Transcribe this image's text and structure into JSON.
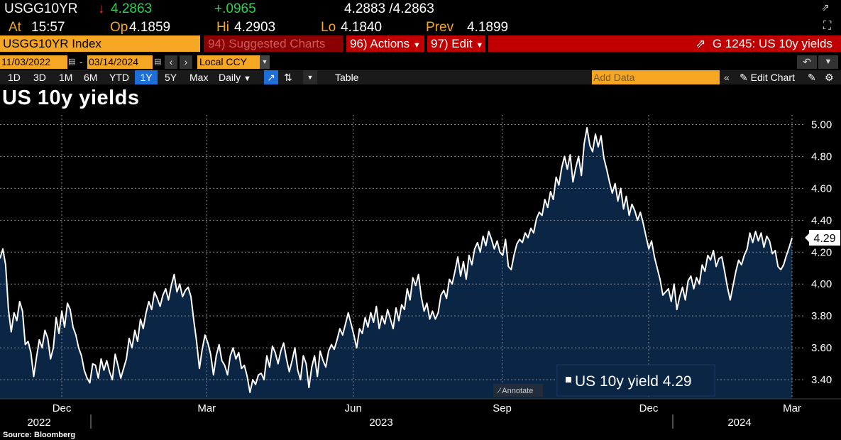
{
  "header": {
    "ticker": "USGG10YR",
    "last": "4.2863",
    "change": "+.0965",
    "bid_ask": "4.2883 /4.2863",
    "at_label": "At",
    "at_time": "15:57",
    "op_label": "Op",
    "op": "4.1859",
    "hi_label": "Hi",
    "hi": "4.2903",
    "lo_label": "Lo",
    "lo": "4.1840",
    "prev_label": "Prev",
    "prev": "4.1899"
  },
  "toolbar": {
    "security": "USGG10YR Index",
    "suggested": "94) Suggested Charts",
    "actions": "96) Actions",
    "edit": "97) Edit",
    "chart_id": "G 1245: US 10y yields",
    "start_date": "11/03/2022",
    "end_date": "03/14/2024",
    "currency": "Local CCY",
    "periods": [
      "1D",
      "3D",
      "1M",
      "6M",
      "YTD",
      "1Y",
      "5Y",
      "Max"
    ],
    "active_period": "1Y",
    "frequency": "Daily",
    "table": "Table",
    "add_data_placeholder": "Add Data",
    "edit_chart": "Edit Chart"
  },
  "colors": {
    "accent": "#f5a623",
    "up": "#2bd14f",
    "down": "#e53935",
    "toolbar_red": "#c00000",
    "fill": "#0b2545"
  },
  "chart_data": {
    "type": "area",
    "title": "US 10y yields",
    "series": [
      {
        "name": "US 10y yield",
        "last": "4.29",
        "values": [
          4.16,
          4.22,
          4.12,
          3.84,
          3.7,
          3.82,
          3.77,
          3.89,
          3.83,
          3.62,
          3.64,
          3.57,
          3.42,
          3.54,
          3.65,
          3.6,
          3.71,
          3.66,
          3.53,
          3.6,
          3.79,
          3.69,
          3.83,
          3.73,
          3.88,
          3.84,
          3.73,
          3.68,
          3.6,
          3.55,
          3.46,
          3.41,
          3.38,
          3.5,
          3.49,
          3.41,
          3.53,
          3.46,
          3.52,
          3.45,
          3.4,
          3.56,
          3.49,
          3.41,
          3.47,
          3.53,
          3.66,
          3.6,
          3.71,
          3.64,
          3.78,
          3.72,
          3.82,
          3.89,
          3.84,
          3.95,
          3.91,
          3.86,
          3.93,
          3.97,
          3.9,
          3.99,
          4.06,
          3.95,
          4.0,
          3.92,
          3.96,
          3.98,
          3.92,
          3.77,
          3.64,
          3.47,
          3.59,
          3.68,
          3.63,
          3.56,
          3.43,
          3.55,
          3.62,
          3.52,
          3.49,
          3.43,
          3.55,
          3.6,
          3.53,
          3.57,
          3.47,
          3.49,
          3.42,
          3.32,
          3.4,
          3.37,
          3.43,
          3.44,
          3.4,
          3.55,
          3.48,
          3.61,
          3.57,
          3.5,
          3.58,
          3.63,
          3.53,
          3.45,
          3.52,
          3.6,
          3.46,
          3.4,
          3.55,
          3.5,
          3.35,
          3.48,
          3.55,
          3.42,
          3.58,
          3.52,
          3.48,
          3.58,
          3.62,
          3.59,
          3.65,
          3.72,
          3.68,
          3.75,
          3.82,
          3.75,
          3.68,
          3.6,
          3.72,
          3.69,
          3.79,
          3.73,
          3.82,
          3.76,
          3.86,
          3.72,
          3.8,
          3.75,
          3.84,
          3.78,
          3.72,
          3.85,
          3.77,
          3.87,
          3.84,
          3.97,
          3.9,
          4.04,
          3.99,
          4.06,
          3.92,
          3.83,
          3.88,
          3.78,
          3.83,
          3.78,
          3.82,
          3.93,
          3.96,
          3.91,
          4.03,
          4.0,
          4.08,
          4.17,
          4.05,
          4.14,
          4.03,
          4.18,
          4.12,
          4.22,
          4.26,
          4.2,
          4.3,
          4.24,
          4.33,
          4.28,
          4.22,
          4.27,
          4.2,
          4.18,
          4.28,
          4.11,
          4.09,
          4.18,
          4.25,
          4.28,
          4.26,
          4.32,
          4.29,
          4.35,
          4.32,
          4.41,
          4.45,
          4.43,
          4.53,
          4.48,
          4.58,
          4.53,
          4.67,
          4.62,
          4.73,
          4.8,
          4.72,
          4.81,
          4.64,
          4.73,
          4.8,
          4.68,
          4.88,
          4.98,
          4.87,
          4.83,
          4.94,
          4.86,
          4.93,
          4.79,
          4.72,
          4.64,
          4.57,
          4.63,
          4.52,
          4.6,
          4.47,
          4.55,
          4.43,
          4.5,
          4.46,
          4.4,
          4.45,
          4.38,
          4.3,
          4.22,
          4.27,
          4.17,
          4.1,
          4.03,
          3.93,
          3.95,
          3.97,
          3.89,
          4.0,
          3.84,
          3.92,
          3.98,
          3.9,
          4.02,
          4.05,
          3.97,
          4.04,
          4.0,
          4.12,
          4.08,
          4.18,
          4.15,
          4.21,
          4.11,
          4.16,
          4.17,
          4.08,
          3.98,
          3.9,
          3.99,
          4.08,
          4.15,
          4.12,
          4.18,
          4.22,
          4.32,
          4.26,
          4.33,
          4.27,
          4.32,
          4.23,
          4.3,
          4.27,
          4.19,
          4.21,
          4.11,
          4.09,
          4.12,
          4.18,
          4.23,
          4.29
        ]
      }
    ],
    "x_ticks": [
      {
        "label": "Dec",
        "pos": 0.078
      },
      {
        "label": "Mar",
        "pos": 0.261
      },
      {
        "label": "Jun",
        "pos": 0.446
      },
      {
        "label": "Sep",
        "pos": 0.634
      },
      {
        "label": "Dec",
        "pos": 0.819
      },
      {
        "label": "Mar",
        "pos": 1.0
      }
    ],
    "years": [
      "2022",
      "2023",
      "2024"
    ],
    "y_ticks": [
      3.4,
      3.6,
      3.8,
      4.0,
      4.2,
      4.4,
      4.6,
      4.8,
      5.0
    ],
    "ylim": [
      3.28,
      5.06
    ],
    "last_value_label": "4.29",
    "legend": "US 10y yield 4.29",
    "annotate_label": "Annotate",
    "grid": true
  },
  "source": "Source: Bloomberg"
}
